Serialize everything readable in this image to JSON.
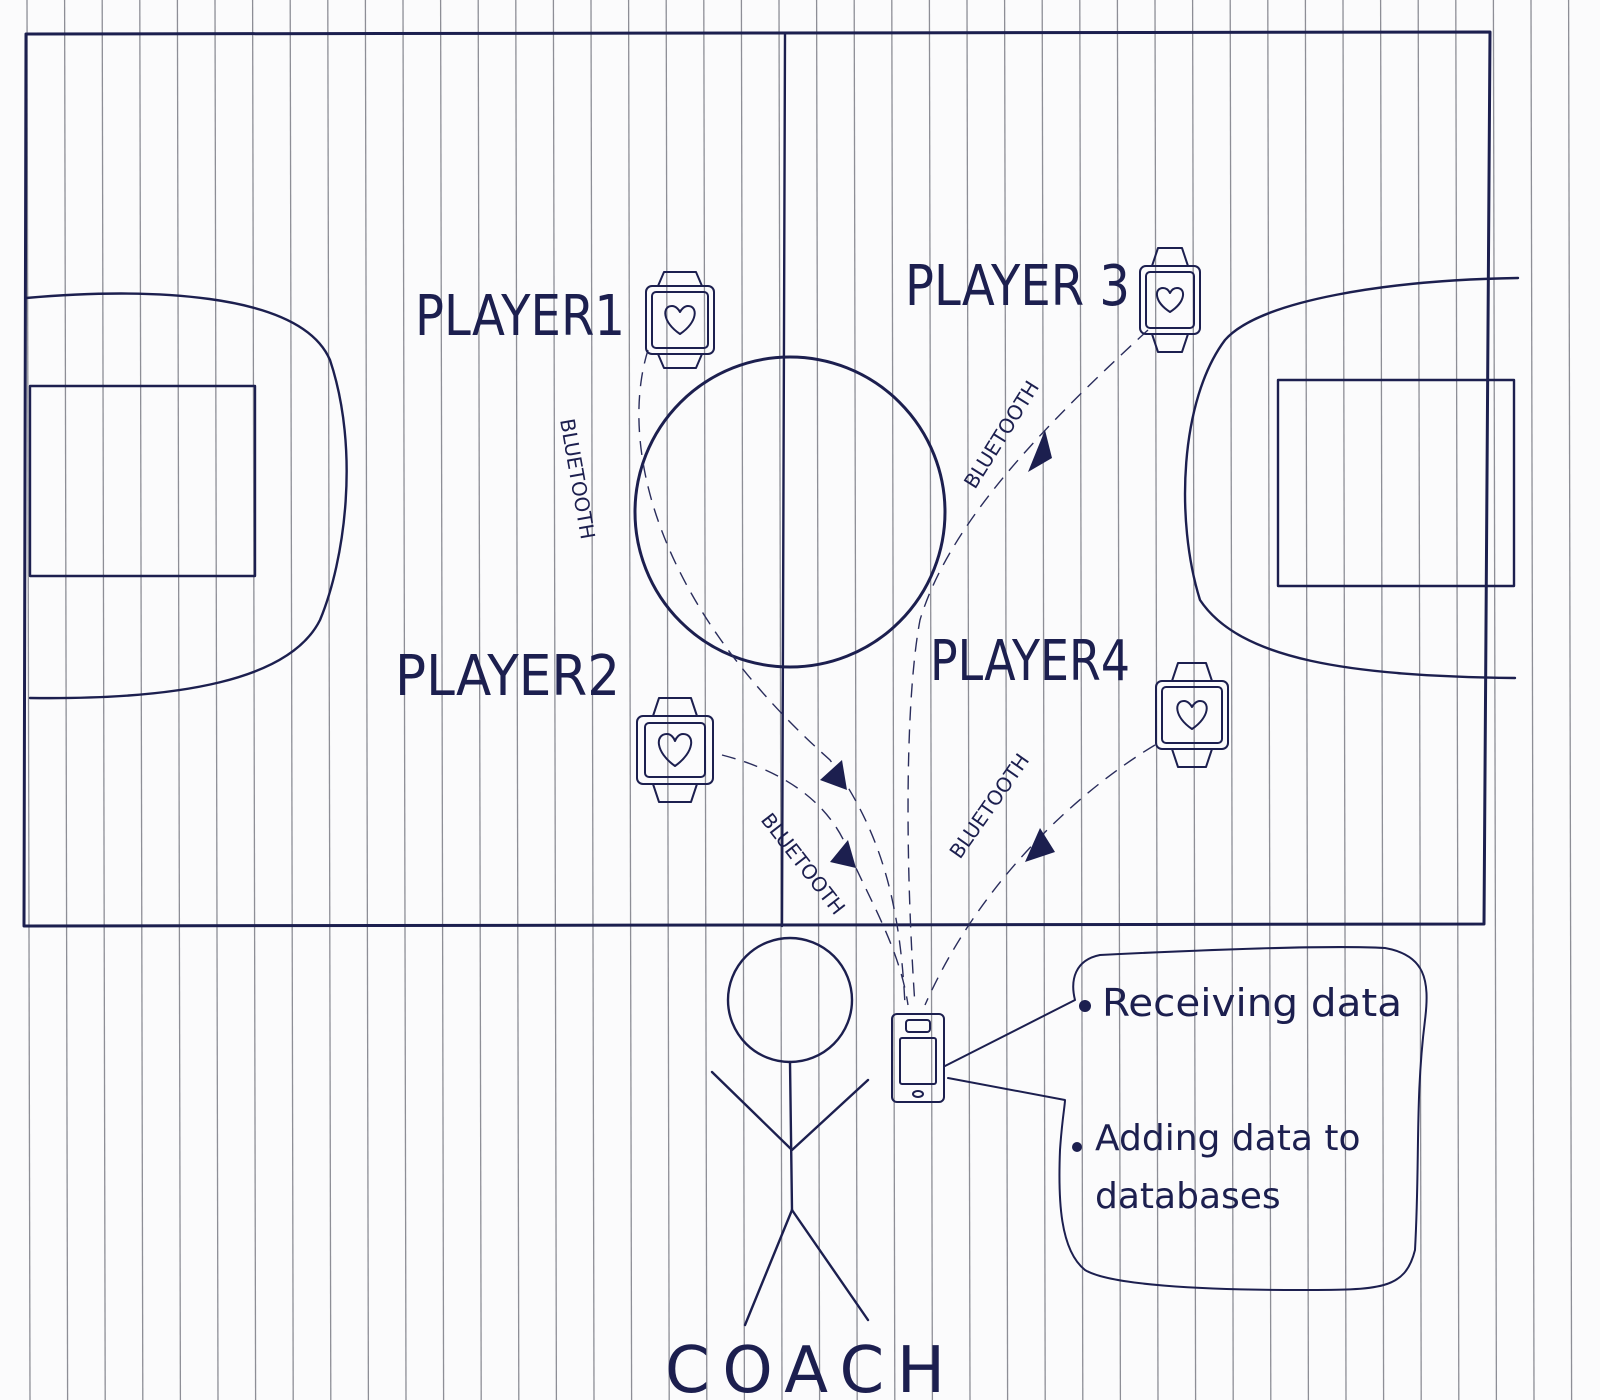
{
  "court": {
    "players": [
      {
        "label": "PLAYER1"
      },
      {
        "label": "PLAYER2"
      },
      {
        "label": "PLAYER 3"
      },
      {
        "label": "PLAYER4"
      }
    ],
    "link_label": "BLUETOOTH",
    "device_icon": "smartwatch-heart-icon"
  },
  "coach": {
    "label": "COACH",
    "device_icon": "smartphone-icon"
  },
  "callout": {
    "items": [
      "Receiving data",
      "Adding data to databases"
    ]
  },
  "colors": {
    "ink": "#1c1f4f",
    "paper": "#fbfbfc",
    "rule_lines": "#8d8e96"
  }
}
